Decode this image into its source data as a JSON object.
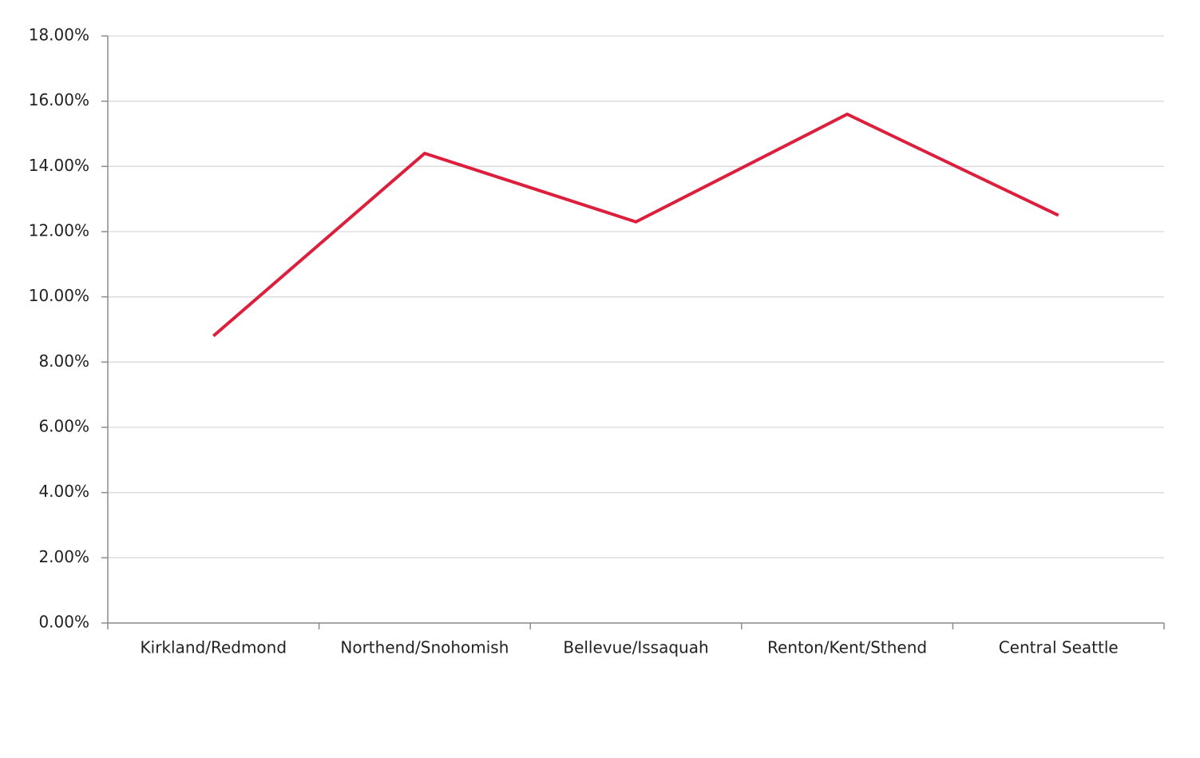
{
  "chart_data": {
    "type": "line",
    "categories": [
      "Kirkland/Redmond",
      "Northend/Snohomish",
      "Bellevue/Issaquah",
      "Renton/Kent/Sthend",
      "Central Seattle"
    ],
    "values": [
      8.8,
      14.4,
      12.3,
      15.6,
      12.5
    ],
    "color": "#dc1f3d",
    "ylim": [
      0,
      18
    ],
    "yticks": [
      {
        "value": 0,
        "label": "0.00%"
      },
      {
        "value": 2,
        "label": "2.00%"
      },
      {
        "value": 4,
        "label": "4.00%"
      },
      {
        "value": 6,
        "label": "6.00%"
      },
      {
        "value": 8,
        "label": "8.00%"
      },
      {
        "value": 10,
        "label": "10.00%"
      },
      {
        "value": 12,
        "label": "12.00%"
      },
      {
        "value": 14,
        "label": "14.00%"
      },
      {
        "value": 16,
        "label": "16.00%"
      },
      {
        "value": 18,
        "label": "18.00%"
      }
    ],
    "grid": true
  }
}
